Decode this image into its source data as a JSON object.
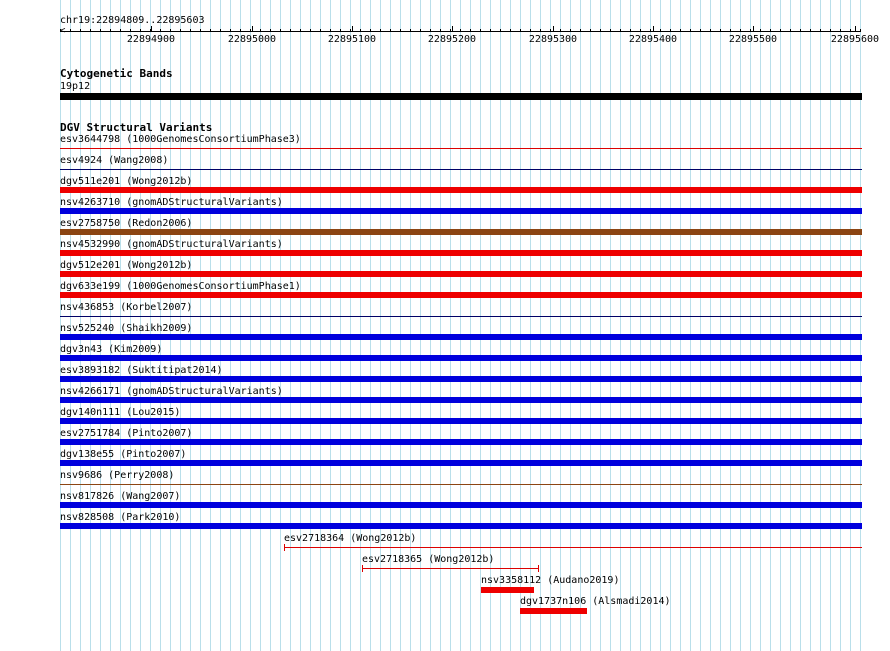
{
  "region": "chr19:22894809..22895603",
  "ruler": {
    "ticks": [
      {
        "label": "22894900"
      },
      {
        "label": "22895000"
      },
      {
        "label": "22895100"
      },
      {
        "label": "22895200"
      },
      {
        "label": "22895300"
      },
      {
        "label": "22895400"
      },
      {
        "label": "22895500"
      },
      {
        "label": "22895600"
      }
    ]
  },
  "tracks": {
    "cytogenetic": {
      "title": "Cytogenetic Bands",
      "band_label": "19p12",
      "band_color": "#000000"
    },
    "dgv": {
      "title": "DGV Structural Variants",
      "features": [
        {
          "label": "esv3644798 (1000GenomesConsortiumPhase3)",
          "color": "#dd0000",
          "style": "thin"
        },
        {
          "label": "esv4924 (Wang2008)",
          "color": "#000066",
          "style": "thin"
        },
        {
          "label": "dgv511e201 (Wong2012b)",
          "color": "#ee0000",
          "style": "thick"
        },
        {
          "label": "nsv4263710 (gnomADStructuralVariants)",
          "color": "#0000dd",
          "style": "thick"
        },
        {
          "label": "esv2758750 (Redon2006)",
          "color": "#8b4513",
          "style": "thick"
        },
        {
          "label": "nsv4532990 (gnomADStructuralVariants)",
          "color": "#ee0000",
          "style": "thick"
        },
        {
          "label": "dgv512e201 (Wong2012b)",
          "color": "#ee0000",
          "style": "thick"
        },
        {
          "label": "dgv633e199 (1000GenomesConsortiumPhase1)",
          "color": "#ee0000",
          "style": "thick"
        },
        {
          "label": "nsv436853 (Korbel2007)",
          "color": "#000066",
          "style": "thin"
        },
        {
          "label": "nsv525240 (Shaikh2009)",
          "color": "#0000dd",
          "style": "thick"
        },
        {
          "label": "dgv3n43 (Kim2009)",
          "color": "#0000dd",
          "style": "thick"
        },
        {
          "label": "esv3893182 (Suktitipat2014)",
          "color": "#0000dd",
          "style": "thick"
        },
        {
          "label": "nsv4266171 (gnomADStructuralVariants)",
          "color": "#0000dd",
          "style": "thick"
        },
        {
          "label": "dgv140n111 (Lou2015)",
          "color": "#0000dd",
          "style": "thick"
        },
        {
          "label": "esv2751784 (Pinto2007)",
          "color": "#0000dd",
          "style": "thick"
        },
        {
          "label": "dgv138e55 (Pinto2007)",
          "color": "#0000dd",
          "style": "thick"
        },
        {
          "label": "nsv9686 (Perry2008)",
          "color": "#8b4513",
          "style": "thin"
        },
        {
          "label": "nsv817826 (Wang2007)",
          "color": "#0000dd",
          "style": "thick"
        },
        {
          "label": "nsv828508 (Park2010)",
          "color": "#0000dd",
          "style": "thick"
        },
        {
          "label": "esv2718364 (Wong2012b)",
          "color": "#dd0000",
          "style": "thin"
        },
        {
          "label": "esv2718365 (Wong2012b)",
          "color": "#dd0000",
          "style": "thin"
        },
        {
          "label": "nsv3358112 (Audano2019)",
          "color": "#ee0000",
          "style": "thick"
        },
        {
          "label": "dgv1737n106 (Alsmadi2014)",
          "color": "#ee0000",
          "style": "thick"
        }
      ]
    }
  }
}
